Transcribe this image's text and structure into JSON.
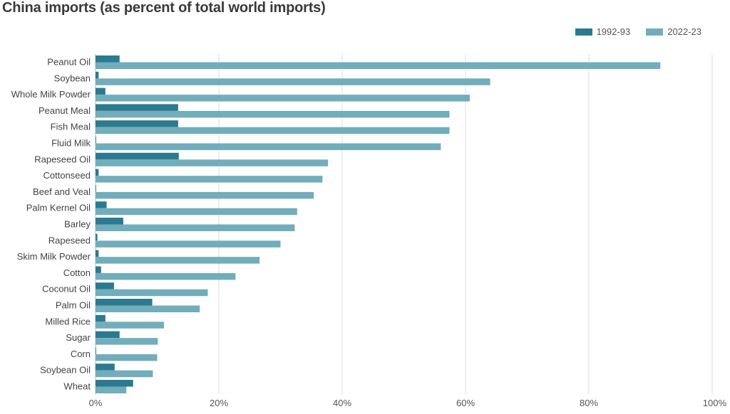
{
  "chart_data": {
    "type": "bar",
    "orientation": "horizontal",
    "title": "China imports (as percent of total world imports)",
    "categories": [
      "Peanut Oil",
      "Soybean",
      "Whole Milk Powder",
      "Peanut Meal",
      "Fish Meal",
      "Fluid Milk",
      "Rapeseed Oil",
      "Cottonseed",
      "Beef and Veal",
      "Palm Kernel Oil",
      "Barley",
      "Rapeseed",
      "Skim Milk Powder",
      "Cotton",
      "Coconut Oil",
      "Palm Oil",
      "Milled Rice",
      "Sugar",
      "Corn",
      "Soybean Oil",
      "Wheat"
    ],
    "series": [
      {
        "name": "1992-93",
        "color": "#2b7a8f",
        "values": [
          3.9,
          0.5,
          1.6,
          13.4,
          13.4,
          0.1,
          13.5,
          0.5,
          0.1,
          1.8,
          4.5,
          0.3,
          0.5,
          0.9,
          3.0,
          9.2,
          1.6,
          3.9,
          0.1,
          3.1,
          6.1
        ]
      },
      {
        "name": "2022-23",
        "color": "#72adbb",
        "values": [
          91.6,
          64.0,
          60.7,
          57.4,
          57.4,
          56.0,
          37.7,
          36.8,
          35.4,
          32.7,
          32.3,
          30.0,
          26.6,
          22.7,
          18.2,
          16.9,
          11.1,
          10.1,
          10.0,
          9.3,
          5.0
        ]
      }
    ],
    "xlim": [
      0,
      100
    ],
    "xticks": [
      "0%",
      "20%",
      "40%",
      "60%",
      "80%",
      "100%"
    ],
    "grid": true,
    "legend_position": "top-right"
  }
}
